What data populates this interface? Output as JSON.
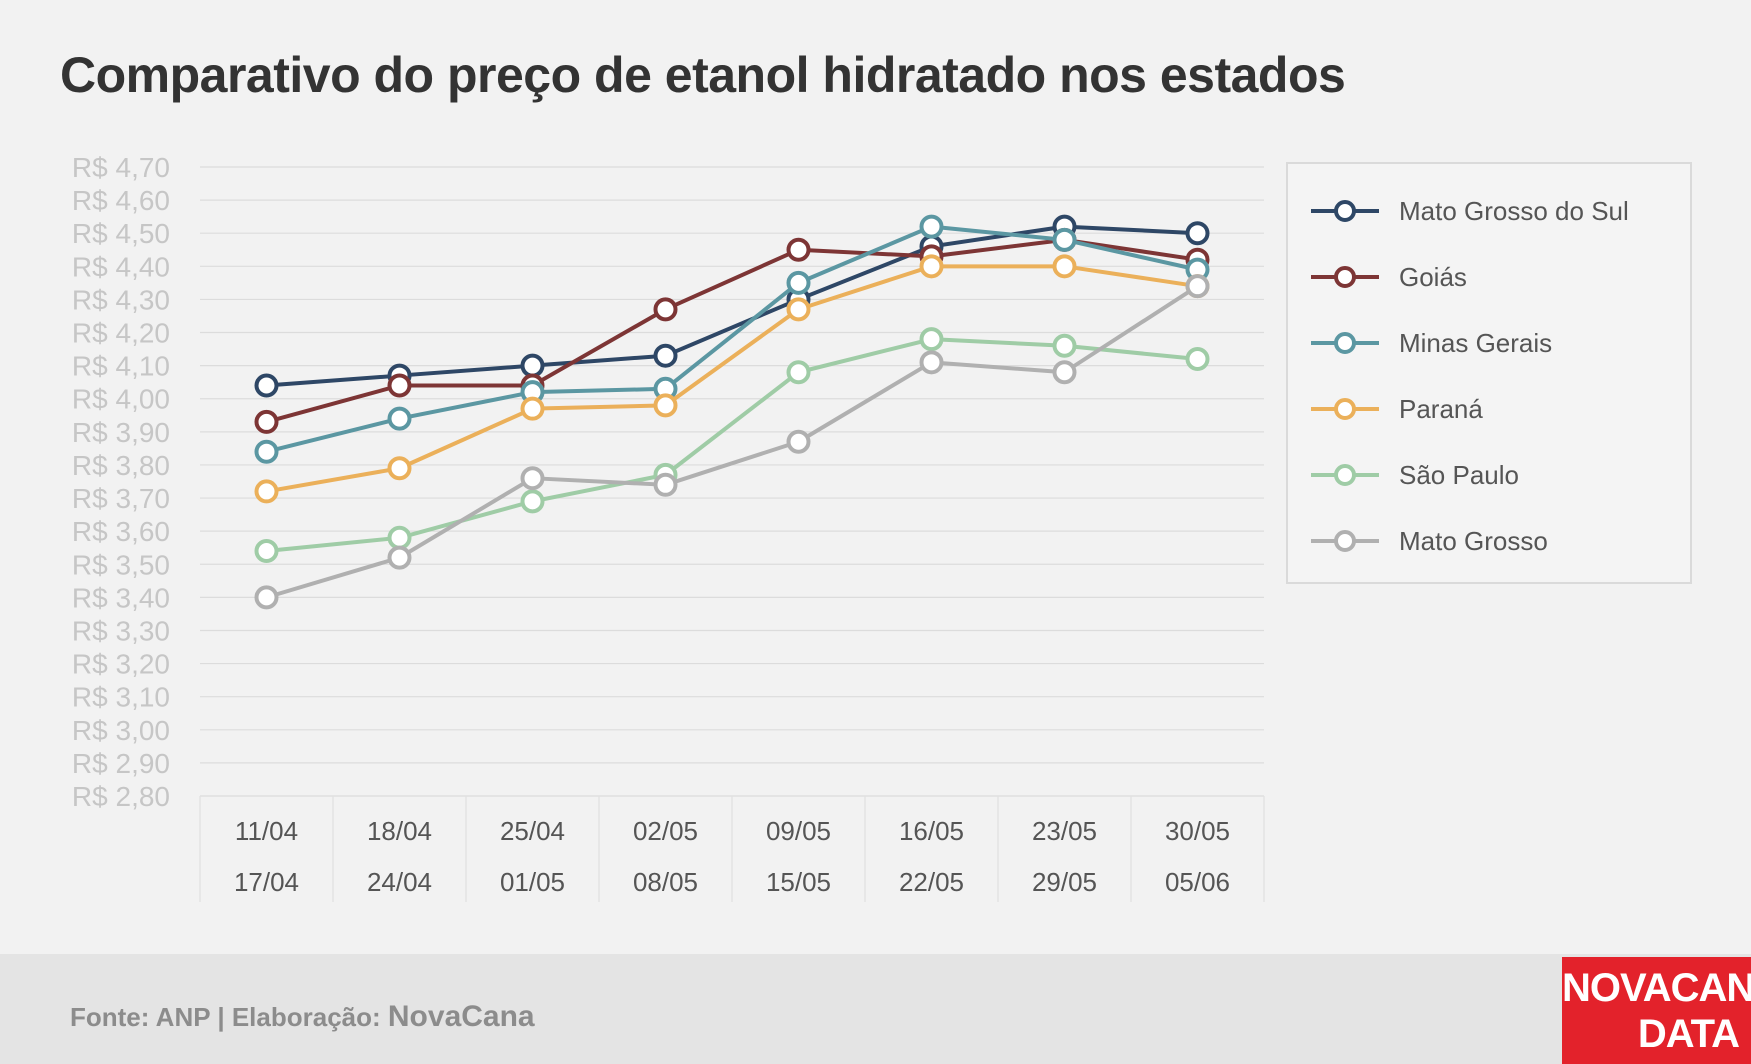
{
  "title": "Comparativo do preço de etanol hidratado nos estados",
  "footer": {
    "source_prefix": "Fonte: ANP | Elaboração: ",
    "source_brand": "NovaCana",
    "logo_line1": "NOVACANA",
    "logo_line2": "DATA"
  },
  "chart_data": {
    "type": "line",
    "title": "Comparativo do preço de etanol hidratado nos estados",
    "xlabel": "",
    "ylabel": "",
    "ylim": [
      2.8,
      4.7
    ],
    "ystep": 0.1,
    "y_tick_prefix": "R$ ",
    "grid": true,
    "legend_position": "right",
    "categories": [
      [
        "11/04",
        "17/04"
      ],
      [
        "18/04",
        "24/04"
      ],
      [
        "25/04",
        "01/05"
      ],
      [
        "02/05",
        "08/05"
      ],
      [
        "09/05",
        "15/05"
      ],
      [
        "16/05",
        "22/05"
      ],
      [
        "23/05",
        "29/05"
      ],
      [
        "30/05",
        "05/06"
      ]
    ],
    "series": [
      {
        "name": "Mato Grosso do Sul",
        "color": "#2e4766",
        "values": [
          4.04,
          4.07,
          4.1,
          4.13,
          4.3,
          4.46,
          4.52,
          4.5
        ]
      },
      {
        "name": "Goiás",
        "color": "#7d3535",
        "values": [
          3.93,
          4.04,
          4.04,
          4.27,
          4.45,
          4.43,
          4.48,
          4.42
        ]
      },
      {
        "name": "Minas Gerais",
        "color": "#5b97a2",
        "values": [
          3.84,
          3.94,
          4.02,
          4.03,
          4.35,
          4.52,
          4.48,
          4.39
        ]
      },
      {
        "name": "Paraná",
        "color": "#ebb05a",
        "values": [
          3.72,
          3.79,
          3.97,
          3.98,
          4.27,
          4.4,
          4.4,
          4.34
        ]
      },
      {
        "name": "São Paulo",
        "color": "#9fcca6",
        "values": [
          3.54,
          3.58,
          3.69,
          3.77,
          4.08,
          4.18,
          4.16,
          4.12
        ]
      },
      {
        "name": "Mato Grosso",
        "color": "#b0b0b0",
        "values": [
          3.4,
          3.52,
          3.76,
          3.74,
          3.87,
          4.11,
          4.08,
          4.34
        ]
      }
    ]
  }
}
